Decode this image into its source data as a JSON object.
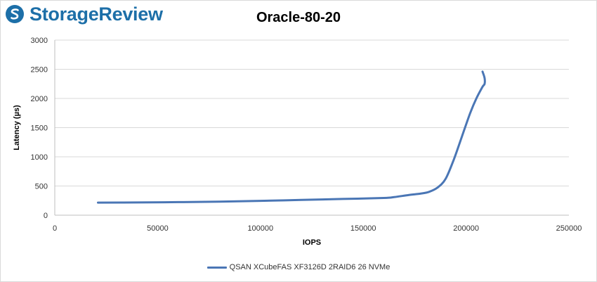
{
  "brand": {
    "name": "StorageReview"
  },
  "colors": {
    "series": "#4a76b5",
    "brand": "#1d6fa8",
    "grid": "#d9d9d9"
  },
  "chart_data": {
    "type": "line",
    "title": "Oracle-80-20",
    "xlabel": "IOPS",
    "ylabel": "Latency (µs)",
    "xlim": [
      0,
      250000
    ],
    "ylim": [
      0,
      3000
    ],
    "xticks": [
      0,
      50000,
      100000,
      150000,
      200000,
      250000
    ],
    "yticks": [
      0,
      500,
      1000,
      1500,
      2000,
      2500,
      3000
    ],
    "grid": true,
    "legend_position": "bottom",
    "series": [
      {
        "name": "QSAN XCubeFAS XF3126D 2RAID6 26 NVMe",
        "x": [
          21000,
          40000,
          60000,
          80000,
          100000,
          120000,
          140000,
          160000,
          165000,
          172000,
          178000,
          182000,
          186000,
          190000,
          194000,
          198000,
          202000,
          205000,
          208000,
          209000,
          209000,
          208000
        ],
        "y": [
          215,
          218,
          224,
          232,
          245,
          262,
          278,
          295,
          310,
          345,
          370,
          400,
          470,
          620,
          950,
          1350,
          1750,
          2000,
          2200,
          2250,
          2350,
          2460
        ]
      }
    ]
  }
}
